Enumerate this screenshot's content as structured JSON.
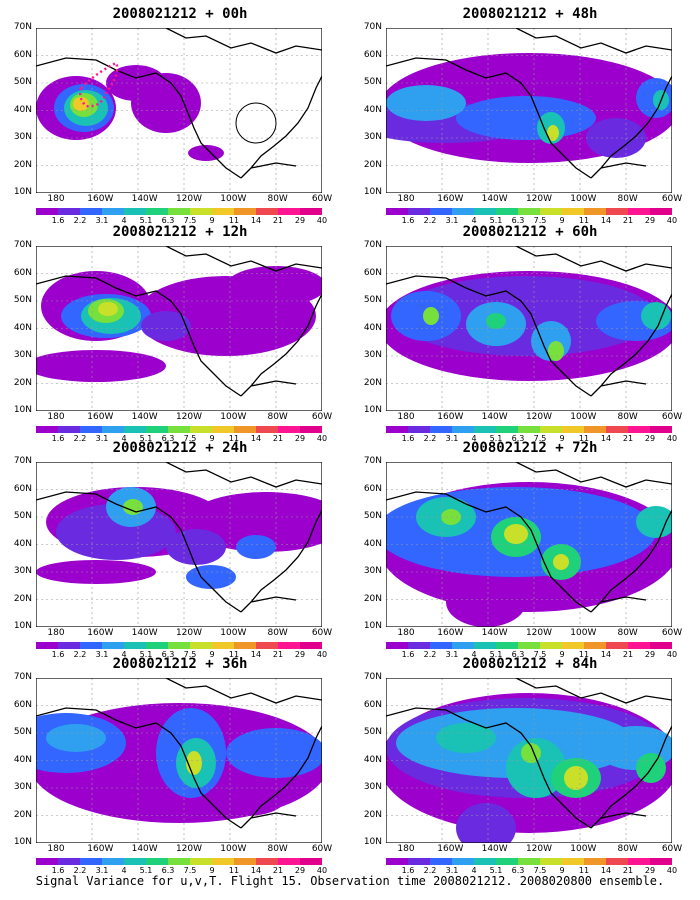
{
  "caption": "Signal Variance for u,v,T. Flight 15. Observation time 2008021212. 2008020800 ensemble.",
  "lat_labels": [
    "70N",
    "60N",
    "50N",
    "40N",
    "30N",
    "20N",
    "10N"
  ],
  "lon_labels": [
    "180",
    "160W",
    "140W",
    "120W",
    "100W",
    "80W",
    "60W"
  ],
  "colorbar": {
    "labels": [
      "1.6",
      "2.2",
      "3.1",
      "4",
      "5.1",
      "6.3",
      "7.5",
      "9",
      "11",
      "14",
      "21",
      "29",
      "40"
    ],
    "colors": [
      "#ffffff",
      "#9b00cc",
      "#6a2be0",
      "#3366ff",
      "#2fa0f0",
      "#19c2b4",
      "#1fd17a",
      "#78e03c",
      "#c8e02a",
      "#f0c828",
      "#f09628",
      "#f04850",
      "#ff1493",
      "#e0008c"
    ]
  },
  "panels": [
    {
      "title": "2008021212 + 00h",
      "lead": 0
    },
    {
      "title": "2008021212 + 48h",
      "lead": 48
    },
    {
      "title": "2008021212 + 12h",
      "lead": 12
    },
    {
      "title": "2008021212 + 60h",
      "lead": 60
    },
    {
      "title": "2008021212 + 24h",
      "lead": 24
    },
    {
      "title": "2008021212 + 72h",
      "lead": 72
    },
    {
      "title": "2008021212 + 36h",
      "lead": 36
    },
    {
      "title": "2008021212 + 84h",
      "lead": 84
    }
  ]
}
